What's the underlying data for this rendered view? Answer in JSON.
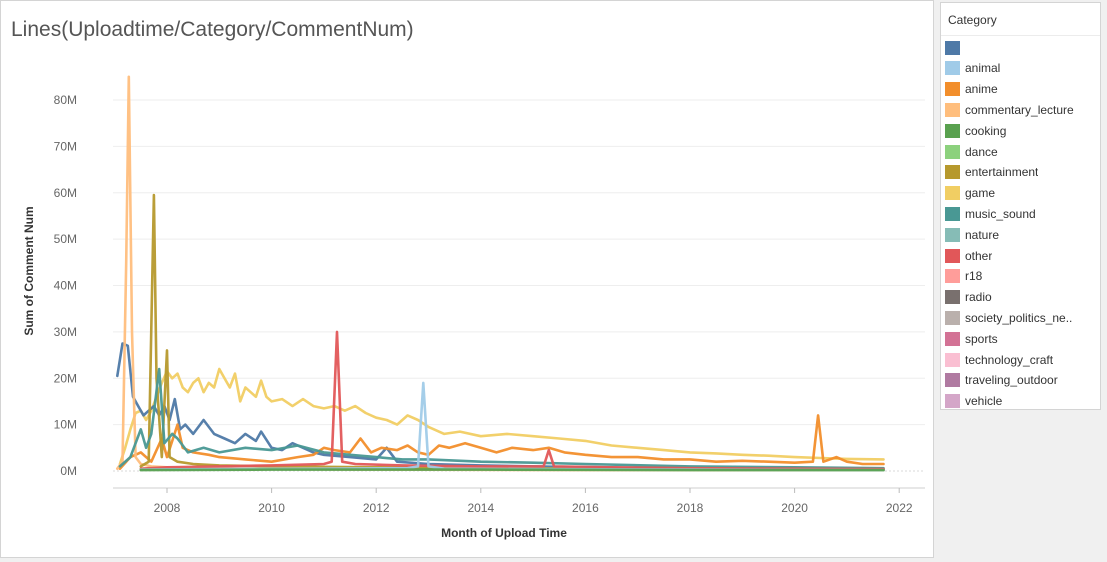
{
  "chart_data": {
    "type": "line",
    "title": "Lines(Uploadtime/Category/CommentNum)",
    "xlabel": "Month of Upload Time",
    "ylabel": "Sum of Comment Num",
    "x_ticks": [
      "2008",
      "2010",
      "2012",
      "2014",
      "2016",
      "2018",
      "2020",
      "2022"
    ],
    "x_range": [
      2006.7,
      2022.4
    ],
    "y_ticks": [
      "0M",
      "10M",
      "20M",
      "30M",
      "40M",
      "50M",
      "60M",
      "70M",
      "80M"
    ],
    "y_tick_values": [
      0,
      10,
      20,
      30,
      40,
      50,
      60,
      70,
      80
    ],
    "ylim": [
      0,
      86
    ],
    "y_unit": "millions",
    "grid": true,
    "legend": {
      "title": "Category",
      "placement": "right",
      "items": [
        {
          "label": "",
          "color": "#4e79a7"
        },
        {
          "label": "animal",
          "color": "#a0cbe8"
        },
        {
          "label": "anime",
          "color": "#f28e2b"
        },
        {
          "label": "commentary_lecture",
          "color": "#ffbe7d"
        },
        {
          "label": "cooking",
          "color": "#59a14f"
        },
        {
          "label": "dance",
          "color": "#8cd17d"
        },
        {
          "label": "entertainment",
          "color": "#b6992d"
        },
        {
          "label": "game",
          "color": "#f1ce63"
        },
        {
          "label": "music_sound",
          "color": "#499894"
        },
        {
          "label": "nature",
          "color": "#86bcb6"
        },
        {
          "label": "other",
          "color": "#e15759"
        },
        {
          "label": "r18",
          "color": "#ff9d9a"
        },
        {
          "label": "radio",
          "color": "#79706e"
        },
        {
          "label": "society_politics_ne..",
          "color": "#bab0ac"
        },
        {
          "label": "sports",
          "color": "#d37295"
        },
        {
          "label": "technology_craft",
          "color": "#fabfd2"
        },
        {
          "label": "traveling_outdoor",
          "color": "#b07aa1"
        },
        {
          "label": "vehicle",
          "color": "#d4a6c8"
        }
      ]
    },
    "series": [
      {
        "color": "#f1ce63",
        "points": [
          [
            2007.1,
            1.5
          ],
          [
            2007.2,
            5
          ],
          [
            2007.3,
            9
          ],
          [
            2007.4,
            12.5
          ],
          [
            2007.5,
            13
          ],
          [
            2007.6,
            11
          ],
          [
            2007.7,
            13
          ],
          [
            2007.8,
            16
          ],
          [
            2007.9,
            19
          ],
          [
            2008.0,
            21.5
          ],
          [
            2008.1,
            20
          ],
          [
            2008.2,
            21
          ],
          [
            2008.3,
            18
          ],
          [
            2008.4,
            17
          ],
          [
            2008.5,
            19
          ],
          [
            2008.6,
            20
          ],
          [
            2008.7,
            17
          ],
          [
            2008.8,
            19
          ],
          [
            2008.9,
            18
          ],
          [
            2009.0,
            22
          ],
          [
            2009.1,
            20
          ],
          [
            2009.2,
            18
          ],
          [
            2009.3,
            21
          ],
          [
            2009.4,
            15
          ],
          [
            2009.5,
            18
          ],
          [
            2009.6,
            17
          ],
          [
            2009.7,
            16
          ],
          [
            2009.8,
            19.5
          ],
          [
            2009.9,
            16
          ],
          [
            2010.0,
            15
          ],
          [
            2010.2,
            15.5
          ],
          [
            2010.4,
            14
          ],
          [
            2010.6,
            15.5
          ],
          [
            2010.8,
            14
          ],
          [
            2011.0,
            13.5
          ],
          [
            2011.2,
            14
          ],
          [
            2011.4,
            13
          ],
          [
            2011.6,
            14
          ],
          [
            2011.8,
            12.5
          ],
          [
            2012.0,
            11.5
          ],
          [
            2012.2,
            11
          ],
          [
            2012.4,
            10
          ],
          [
            2012.6,
            12
          ],
          [
            2012.8,
            11
          ],
          [
            2013.0,
            9.5
          ],
          [
            2013.3,
            8
          ],
          [
            2013.6,
            8.5
          ],
          [
            2014.0,
            7.5
          ],
          [
            2014.5,
            8
          ],
          [
            2015.0,
            7.5
          ],
          [
            2015.5,
            7
          ],
          [
            2016.0,
            6.5
          ],
          [
            2016.5,
            5.5
          ],
          [
            2017.0,
            5
          ],
          [
            2017.5,
            4.5
          ],
          [
            2018.0,
            4
          ],
          [
            2018.5,
            3.8
          ],
          [
            2019.0,
            3.5
          ],
          [
            2019.5,
            3.3
          ],
          [
            2020.0,
            3
          ],
          [
            2020.5,
            2.8
          ],
          [
            2021.0,
            2.6
          ],
          [
            2021.7,
            2.5
          ]
        ]
      },
      {
        "color": "#4e79a7",
        "points": [
          [
            2007.05,
            20.5
          ],
          [
            2007.15,
            27.5
          ],
          [
            2007.25,
            27
          ],
          [
            2007.35,
            16
          ],
          [
            2007.45,
            14
          ],
          [
            2007.55,
            12
          ],
          [
            2007.65,
            13
          ],
          [
            2007.75,
            14
          ],
          [
            2007.85,
            12
          ],
          [
            2007.95,
            14
          ],
          [
            2008.05,
            11
          ],
          [
            2008.15,
            15.5
          ],
          [
            2008.25,
            9
          ],
          [
            2008.35,
            10
          ],
          [
            2008.5,
            8
          ],
          [
            2008.7,
            11
          ],
          [
            2008.9,
            8
          ],
          [
            2009.1,
            7
          ],
          [
            2009.3,
            6
          ],
          [
            2009.5,
            8
          ],
          [
            2009.7,
            6.5
          ],
          [
            2009.8,
            8.5
          ],
          [
            2010.0,
            5
          ],
          [
            2010.2,
            4.5
          ],
          [
            2010.4,
            6
          ],
          [
            2010.6,
            5
          ],
          [
            2010.8,
            4
          ],
          [
            2011.0,
            3.5
          ],
          [
            2011.5,
            3
          ],
          [
            2012.0,
            2.5
          ],
          [
            2012.2,
            5
          ],
          [
            2012.4,
            2
          ],
          [
            2013.0,
            1.5
          ],
          [
            2014.0,
            1.2
          ],
          [
            2016.0,
            0.8
          ],
          [
            2018.0,
            0.5
          ],
          [
            2020.0,
            0.4
          ],
          [
            2021.7,
            0.3
          ]
        ]
      },
      {
        "color": "#f28e2b",
        "points": [
          [
            2007.1,
            0.5
          ],
          [
            2007.3,
            3
          ],
          [
            2007.5,
            4
          ],
          [
            2007.7,
            2
          ],
          [
            2007.9,
            7
          ],
          [
            2008.0,
            3
          ],
          [
            2008.2,
            10
          ],
          [
            2008.3,
            5
          ],
          [
            2008.5,
            4
          ],
          [
            2008.8,
            3.5
          ],
          [
            2009.0,
            3
          ],
          [
            2009.5,
            2.5
          ],
          [
            2010.0,
            2
          ],
          [
            2010.5,
            3
          ],
          [
            2010.8,
            3.5
          ],
          [
            2011.0,
            5
          ],
          [
            2011.2,
            4.5
          ],
          [
            2011.5,
            4
          ],
          [
            2011.7,
            7
          ],
          [
            2011.9,
            4
          ],
          [
            2012.1,
            5
          ],
          [
            2012.4,
            4.5
          ],
          [
            2012.6,
            5.5
          ],
          [
            2012.8,
            4
          ],
          [
            2013.0,
            3.5
          ],
          [
            2013.2,
            5.5
          ],
          [
            2013.4,
            5
          ],
          [
            2013.7,
            6
          ],
          [
            2014.0,
            5
          ],
          [
            2014.3,
            4
          ],
          [
            2014.6,
            5
          ],
          [
            2015.0,
            4.5
          ],
          [
            2015.3,
            5
          ],
          [
            2015.6,
            4
          ],
          [
            2016.0,
            3.5
          ],
          [
            2016.5,
            3
          ],
          [
            2017.0,
            3
          ],
          [
            2017.5,
            2.5
          ],
          [
            2018.0,
            2.5
          ],
          [
            2018.5,
            2
          ],
          [
            2019.0,
            2.2
          ],
          [
            2019.5,
            2
          ],
          [
            2020.0,
            1.8
          ],
          [
            2020.35,
            2
          ],
          [
            2020.45,
            12
          ],
          [
            2020.55,
            2
          ],
          [
            2020.8,
            3
          ],
          [
            2021.0,
            2
          ],
          [
            2021.3,
            1.5
          ],
          [
            2021.7,
            1.5
          ]
        ]
      },
      {
        "color": "#ffbe7d",
        "points": [
          [
            2007.05,
            0.5
          ],
          [
            2007.15,
            2
          ],
          [
            2007.22,
            45
          ],
          [
            2007.27,
            85
          ],
          [
            2007.33,
            30
          ],
          [
            2007.4,
            3
          ],
          [
            2007.5,
            1.5
          ],
          [
            2007.7,
            1
          ],
          [
            2008.0,
            0.8
          ],
          [
            2008.5,
            0.5
          ],
          [
            2010.0,
            0.4
          ],
          [
            2012.0,
            0.3
          ],
          [
            2016.0,
            0.2
          ],
          [
            2021.7,
            0.2
          ]
        ]
      },
      {
        "color": "#b6992d",
        "points": [
          [
            2007.5,
            1
          ],
          [
            2007.65,
            2
          ],
          [
            2007.75,
            59.5
          ],
          [
            2007.8,
            20
          ],
          [
            2007.9,
            3
          ],
          [
            2008.0,
            26
          ],
          [
            2008.05,
            3
          ],
          [
            2008.2,
            2
          ],
          [
            2008.5,
            1.5
          ],
          [
            2009.0,
            1.2
          ],
          [
            2010.0,
            1
          ],
          [
            2012.0,
            0.8
          ],
          [
            2016.0,
            0.5
          ],
          [
            2021.7,
            0.4
          ]
        ]
      },
      {
        "color": "#499894",
        "points": [
          [
            2007.1,
            1
          ],
          [
            2007.3,
            3
          ],
          [
            2007.5,
            9
          ],
          [
            2007.6,
            5
          ],
          [
            2007.7,
            8
          ],
          [
            2007.85,
            22
          ],
          [
            2007.95,
            6
          ],
          [
            2008.1,
            8
          ],
          [
            2008.2,
            7
          ],
          [
            2008.4,
            4
          ],
          [
            2008.7,
            5
          ],
          [
            2009.0,
            4
          ],
          [
            2009.5,
            5
          ],
          [
            2010.0,
            4.5
          ],
          [
            2010.5,
            5.5
          ],
          [
            2011.0,
            4
          ],
          [
            2011.5,
            3.5
          ],
          [
            2012.0,
            3
          ],
          [
            2012.5,
            2.5
          ],
          [
            2013.0,
            2.5
          ],
          [
            2014.0,
            2
          ],
          [
            2015.0,
            1.8
          ],
          [
            2016.0,
            1.5
          ],
          [
            2018.0,
            1
          ],
          [
            2020.0,
            0.8
          ],
          [
            2021.7,
            0.6
          ]
        ]
      },
      {
        "color": "#e15759",
        "points": [
          [
            2007.5,
            0.5
          ],
          [
            2008.0,
            0.8
          ],
          [
            2009.0,
            1
          ],
          [
            2010.0,
            1.2
          ],
          [
            2011.0,
            1.5
          ],
          [
            2011.15,
            2
          ],
          [
            2011.25,
            30
          ],
          [
            2011.35,
            2
          ],
          [
            2011.6,
            1.5
          ],
          [
            2012.5,
            1.2
          ],
          [
            2014.0,
            1
          ],
          [
            2015.2,
            1
          ],
          [
            2015.3,
            4.5
          ],
          [
            2015.4,
            1
          ],
          [
            2016.5,
            0.8
          ],
          [
            2018.0,
            0.6
          ],
          [
            2020.0,
            0.5
          ],
          [
            2021.7,
            0.4
          ]
        ]
      },
      {
        "color": "#a0cbe8",
        "points": [
          [
            2007.5,
            0.3
          ],
          [
            2009.0,
            0.4
          ],
          [
            2011.0,
            0.5
          ],
          [
            2012.6,
            0.6
          ],
          [
            2012.8,
            1
          ],
          [
            2012.9,
            19
          ],
          [
            2013.0,
            1
          ],
          [
            2013.3,
            0.5
          ],
          [
            2015.0,
            0.4
          ],
          [
            2018.0,
            0.3
          ],
          [
            2021.7,
            0.2
          ]
        ]
      },
      {
        "color": "#59a14f",
        "points": [
          [
            2007.5,
            0.2
          ],
          [
            2010.0,
            0.3
          ],
          [
            2014.0,
            0.3
          ],
          [
            2018.0,
            0.2
          ],
          [
            2021.7,
            0.2
          ]
        ]
      }
    ]
  }
}
